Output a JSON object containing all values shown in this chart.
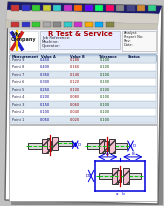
{
  "bg_color": "#c0c0c0",
  "window_bg": "#ffffff",
  "titlebar_color": "#1a1a6e",
  "toolbar_color": "#d4d0c8",
  "toolbar2_color": "#c8c4b8",
  "header_bg": "#f0f4ff",
  "header_title_bg": "#e8ecff",
  "table_header_bg": "#b8cce4",
  "table_row_odd": "#dce6f0",
  "table_row_even": "#ffffff",
  "coupling_pink": "#f5c0d0",
  "coupling_pink2": "#e8a8be",
  "shaft_gray": "#d8d8d8",
  "shaft_dark": "#909090",
  "center_line_green": "#00cc00",
  "dim_blue": "#0000dd",
  "dim_red": "#cc0000",
  "outline_dark": "#333333",
  "outline_med": "#555555",
  "logo_red": "#cc2222",
  "logo_blue": "#2222cc",
  "logo_yellow": "#ffcc00",
  "logo_green": "#22aa22",
  "text_dark": "#222222",
  "text_blue": "#0000aa",
  "text_red": "#aa0000",
  "shadow_color": "#888888"
}
